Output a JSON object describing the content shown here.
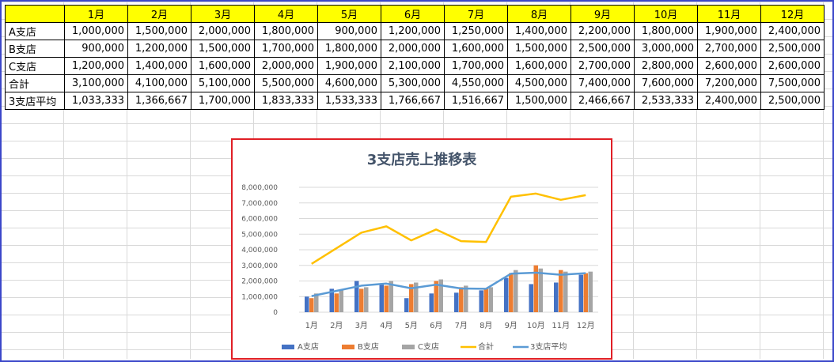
{
  "sheet": {
    "months": [
      "1月",
      "2月",
      "3月",
      "4月",
      "5月",
      "6月",
      "7月",
      "8月",
      "9月",
      "10月",
      "11月",
      "12月"
    ],
    "rows": [
      {
        "label": "A支店",
        "values": [
          "1,000,000",
          "1,500,000",
          "2,000,000",
          "1,800,000",
          "900,000",
          "1,200,000",
          "1,250,000",
          "1,400,000",
          "2,200,000",
          "1,800,000",
          "1,900,000",
          "2,400,000"
        ]
      },
      {
        "label": "B支店",
        "values": [
          "900,000",
          "1,200,000",
          "1,500,000",
          "1,700,000",
          "1,800,000",
          "2,000,000",
          "1,600,000",
          "1,500,000",
          "2,500,000",
          "3,000,000",
          "2,700,000",
          "2,500,000"
        ]
      },
      {
        "label": "C支店",
        "values": [
          "1,200,000",
          "1,400,000",
          "1,600,000",
          "2,000,000",
          "1,900,000",
          "2,100,000",
          "1,700,000",
          "1,600,000",
          "2,700,000",
          "2,800,000",
          "2,600,000",
          "2,600,000"
        ]
      },
      {
        "label": "合計",
        "values": [
          "3,100,000",
          "4,100,000",
          "5,100,000",
          "5,500,000",
          "4,600,000",
          "5,300,000",
          "4,550,000",
          "4,500,000",
          "7,400,000",
          "7,600,000",
          "7,200,000",
          "7,500,000"
        ]
      },
      {
        "label": "3支店平均",
        "values": [
          "1,033,333",
          "1,366,667",
          "1,700,000",
          "1,833,333",
          "1,533,333",
          "1,766,667",
          "1,516,667",
          "1,500,000",
          "2,466,667",
          "2,533,333",
          "2,400,000",
          "2,500,000"
        ]
      }
    ]
  },
  "chart_data": {
    "type": "bar",
    "title": "3支店売上推移表",
    "categories": [
      "1月",
      "2月",
      "3月",
      "4月",
      "5月",
      "6月",
      "7月",
      "8月",
      "9月",
      "10月",
      "11月",
      "12月"
    ],
    "ylim": [
      0,
      8000000
    ],
    "y_ticks": [
      "0",
      "1,000,000",
      "2,000,000",
      "3,000,000",
      "4,000,000",
      "5,000,000",
      "6,000,000",
      "7,000,000",
      "8,000,000"
    ],
    "grid": true,
    "legend_position": "bottom",
    "series": [
      {
        "name": "A支店",
        "kind": "bar",
        "color": "#4472c4",
        "values": [
          1000000,
          1500000,
          2000000,
          1800000,
          900000,
          1200000,
          1250000,
          1400000,
          2200000,
          1800000,
          1900000,
          2400000
        ]
      },
      {
        "name": "B支店",
        "kind": "bar",
        "color": "#ed7d31",
        "values": [
          900000,
          1200000,
          1500000,
          1700000,
          1800000,
          2000000,
          1600000,
          1500000,
          2500000,
          3000000,
          2700000,
          2500000
        ]
      },
      {
        "name": "C支店",
        "kind": "bar",
        "color": "#a5a5a5",
        "values": [
          1200000,
          1400000,
          1600000,
          2000000,
          1900000,
          2100000,
          1700000,
          1600000,
          2700000,
          2800000,
          2600000,
          2600000
        ]
      },
      {
        "name": "合計",
        "kind": "line",
        "color": "#ffc000",
        "values": [
          3100000,
          4100000,
          5100000,
          5500000,
          4600000,
          5300000,
          4550000,
          4500000,
          7400000,
          7600000,
          7200000,
          7500000
        ]
      },
      {
        "name": "3支店平均",
        "kind": "line",
        "color": "#5b9bd5",
        "values": [
          1033333,
          1366667,
          1700000,
          1833333,
          1533333,
          1766667,
          1516667,
          1500000,
          2466667,
          2533333,
          2400000,
          2500000
        ]
      }
    ]
  }
}
